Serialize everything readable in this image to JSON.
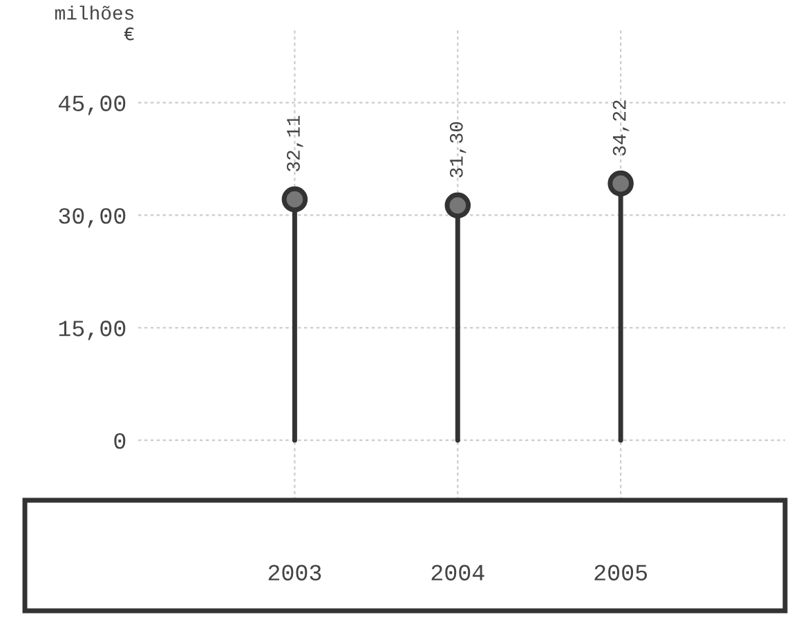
{
  "chart_data": {
    "type": "lollipop",
    "ylabel": "milhões\n€",
    "categories": [
      "2003",
      "2004",
      "2005"
    ],
    "series": [
      {
        "color": "#333333",
        "values": [
          32.11,
          31.3,
          34.22
        ],
        "value_labels": [
          "32,11",
          "31,30",
          "34,22"
        ]
      }
    ],
    "ylim": [
      -8,
      55
    ],
    "yticks": [
      0,
      {
        "value": 15,
        "label": "15,00"
      },
      {
        "value": 30,
        "label": "30,00"
      },
      {
        "value": 45,
        "label": "45,00"
      }
    ],
    "marker": "circle",
    "grid": true
  }
}
